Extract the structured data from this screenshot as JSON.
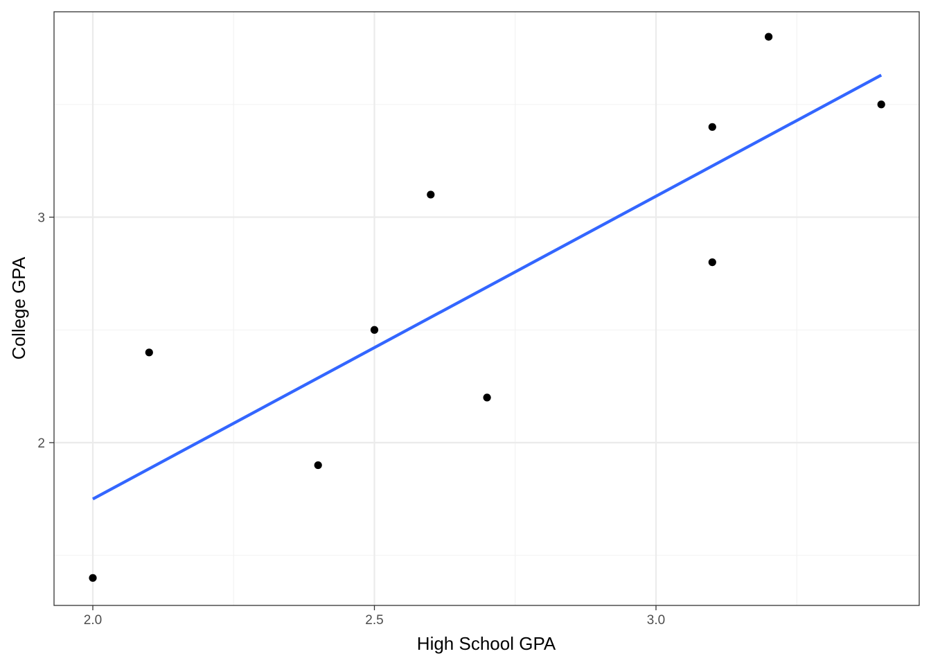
{
  "chart_data": {
    "type": "scatter",
    "title": "",
    "xlabel": "High School GPA",
    "ylabel": "College GPA",
    "xlim": [
      1.93,
      3.45
    ],
    "ylim": [
      1.3,
      3.9
    ],
    "x_ticks": [
      {
        "value": 2.0,
        "label": "2.0"
      },
      {
        "value": 2.5,
        "label": "2.5"
      },
      {
        "value": 3.0,
        "label": "3.0"
      }
    ],
    "y_ticks": [
      {
        "value": 2,
        "label": "2"
      },
      {
        "value": 3,
        "label": "3"
      }
    ],
    "x_minor_grid": [
      2.25,
      2.75,
      3.25
    ],
    "y_minor_grid": [
      1.5,
      2.5,
      3.5
    ],
    "grid": true,
    "points": [
      {
        "x": 2.0,
        "y": 1.4
      },
      {
        "x": 2.1,
        "y": 2.4
      },
      {
        "x": 2.4,
        "y": 1.9
      },
      {
        "x": 2.5,
        "y": 2.5
      },
      {
        "x": 2.6,
        "y": 3.1
      },
      {
        "x": 2.7,
        "y": 2.2
      },
      {
        "x": 3.1,
        "y": 2.8
      },
      {
        "x": 3.1,
        "y": 3.4
      },
      {
        "x": 3.2,
        "y": 3.8
      },
      {
        "x": 3.4,
        "y": 3.5
      }
    ],
    "fit_line": {
      "x0": 2.0,
      "y0": 1.75,
      "x1": 3.4,
      "y1": 3.63
    },
    "colors": {
      "points": "#000000",
      "fit_line": "#3366ff",
      "grid_major": "#ebebeb",
      "grid_minor": "#f2f2f2",
      "panel_border": "#333333",
      "tick_text": "#4d4d4d"
    }
  }
}
